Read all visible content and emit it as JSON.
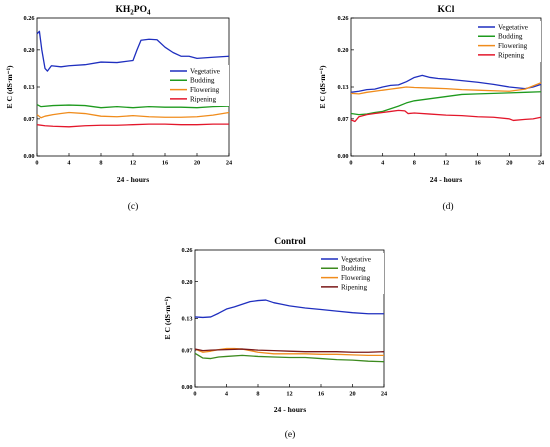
{
  "chart_data": [
    {
      "type": "line",
      "title": "KH2PO4",
      "title_base": "KH",
      "title_sub1": "2",
      "title_mid": "PO",
      "title_sub2": "4",
      "caption": "(c)",
      "xlabel": "24 - hours",
      "ylabel": "E C (dS·m⁻¹)",
      "xlim": [
        0,
        24
      ],
      "ylim": [
        0,
        0.26
      ],
      "xticks": [
        "0",
        "4",
        "8",
        "12",
        "16",
        "20",
        "24"
      ],
      "yticks": [
        "0.00",
        "0.07",
        "0.13",
        "0.20",
        "0.26"
      ],
      "grid": false,
      "legend_position": "right",
      "series": [
        {
          "name": "Vegetative",
          "color": "#1f2fbf",
          "points": [
            [
              0,
              0.23
            ],
            [
              0.3,
              0.235
            ],
            [
              0.6,
              0.2
            ],
            [
              1,
              0.165
            ],
            [
              1.3,
              0.16
            ],
            [
              1.8,
              0.17
            ],
            [
              3,
              0.168
            ],
            [
              4,
              0.17
            ],
            [
              6,
              0.172
            ],
            [
              8,
              0.177
            ],
            [
              10,
              0.176
            ],
            [
              12,
              0.18
            ],
            [
              12.5,
              0.2
            ],
            [
              13,
              0.218
            ],
            [
              14,
              0.22
            ],
            [
              15,
              0.219
            ],
            [
              16,
              0.205
            ],
            [
              17,
              0.195
            ],
            [
              18,
              0.188
            ],
            [
              19,
              0.188
            ],
            [
              20,
              0.184
            ],
            [
              22,
              0.186
            ],
            [
              24,
              0.188
            ]
          ]
        },
        {
          "name": "Budding",
          "color": "#1e9a1e",
          "points": [
            [
              0,
              0.097
            ],
            [
              0.5,
              0.093
            ],
            [
              2,
              0.095
            ],
            [
              4,
              0.096
            ],
            [
              6,
              0.095
            ],
            [
              8,
              0.091
            ],
            [
              10,
              0.093
            ],
            [
              12,
              0.091
            ],
            [
              14,
              0.093
            ],
            [
              16,
              0.092
            ],
            [
              18,
              0.092
            ],
            [
              20,
              0.091
            ],
            [
              22,
              0.093
            ],
            [
              24,
              0.094
            ]
          ]
        },
        {
          "name": "Flowering",
          "color": "#f08c1c",
          "points": [
            [
              0,
              0.078
            ],
            [
              0.5,
              0.072
            ],
            [
              1,
              0.075
            ],
            [
              2,
              0.078
            ],
            [
              3,
              0.08
            ],
            [
              4,
              0.082
            ],
            [
              6,
              0.08
            ],
            [
              8,
              0.075
            ],
            [
              10,
              0.074
            ],
            [
              12,
              0.076
            ],
            [
              14,
              0.074
            ],
            [
              16,
              0.073
            ],
            [
              18,
              0.073
            ],
            [
              20,
              0.074
            ],
            [
              22,
              0.077
            ],
            [
              24,
              0.082
            ]
          ]
        },
        {
          "name": "Ripening",
          "color": "#e3172b",
          "points": [
            [
              0,
              0.059
            ],
            [
              1,
              0.057
            ],
            [
              2,
              0.056
            ],
            [
              4,
              0.055
            ],
            [
              6,
              0.057
            ],
            [
              8,
              0.058
            ],
            [
              10,
              0.058
            ],
            [
              12,
              0.059
            ],
            [
              14,
              0.06
            ],
            [
              16,
              0.06
            ],
            [
              18,
              0.059
            ],
            [
              20,
              0.059
            ],
            [
              22,
              0.06
            ],
            [
              24,
              0.06
            ]
          ]
        }
      ]
    },
    {
      "type": "line",
      "title": "KCl",
      "caption": "(d)",
      "xlabel": "24 - hours",
      "ylabel": "E C (dS·m⁻¹)",
      "xlim": [
        0,
        24
      ],
      "ylim": [
        0,
        0.26
      ],
      "xticks": [
        "0",
        "4",
        "8",
        "12",
        "16",
        "20",
        "24"
      ],
      "yticks": [
        "0.00",
        "0.07",
        "0.13",
        "0.20",
        "0.26"
      ],
      "grid": false,
      "legend_position": "top-right",
      "series": [
        {
          "name": "Vegetative",
          "color": "#1f2fbf",
          "points": [
            [
              0,
              0.12
            ],
            [
              1,
              0.122
            ],
            [
              2,
              0.125
            ],
            [
              3,
              0.126
            ],
            [
              4,
              0.13
            ],
            [
              5,
              0.133
            ],
            [
              6,
              0.134
            ],
            [
              7,
              0.14
            ],
            [
              8,
              0.148
            ],
            [
              9,
              0.152
            ],
            [
              10,
              0.148
            ],
            [
              11,
              0.146
            ],
            [
              12,
              0.145
            ],
            [
              14,
              0.142
            ],
            [
              16,
              0.139
            ],
            [
              18,
              0.135
            ],
            [
              20,
              0.13
            ],
            [
              22,
              0.127
            ],
            [
              23,
              0.13
            ],
            [
              24,
              0.135
            ]
          ]
        },
        {
          "name": "Budding",
          "color": "#1e9a1e",
          "points": [
            [
              0,
              0.08
            ],
            [
              1,
              0.078
            ],
            [
              2,
              0.079
            ],
            [
              3,
              0.082
            ],
            [
              4,
              0.084
            ],
            [
              5,
              0.089
            ],
            [
              6,
              0.094
            ],
            [
              7,
              0.1
            ],
            [
              8,
              0.104
            ],
            [
              10,
              0.108
            ],
            [
              12,
              0.112
            ],
            [
              14,
              0.116
            ],
            [
              16,
              0.117
            ],
            [
              18,
              0.118
            ],
            [
              20,
              0.119
            ],
            [
              22,
              0.12
            ],
            [
              24,
              0.121
            ]
          ]
        },
        {
          "name": "Flowering",
          "color": "#f08c1c",
          "points": [
            [
              0,
              0.118
            ],
            [
              1,
              0.117
            ],
            [
              2,
              0.12
            ],
            [
              4,
              0.124
            ],
            [
              5,
              0.126
            ],
            [
              6,
              0.128
            ],
            [
              7,
              0.13
            ],
            [
              8,
              0.129
            ],
            [
              10,
              0.128
            ],
            [
              12,
              0.127
            ],
            [
              14,
              0.125
            ],
            [
              16,
              0.124
            ],
            [
              18,
              0.123
            ],
            [
              20,
              0.122
            ],
            [
              22,
              0.126
            ],
            [
              24,
              0.138
            ]
          ]
        },
        {
          "name": "Ripening",
          "color": "#e3172b",
          "points": [
            [
              0,
              0.068
            ],
            [
              0.5,
              0.065
            ],
            [
              1,
              0.074
            ],
            [
              2,
              0.078
            ],
            [
              3,
              0.08
            ],
            [
              4,
              0.082
            ],
            [
              5,
              0.084
            ],
            [
              6,
              0.086
            ],
            [
              6.8,
              0.085
            ],
            [
              7.2,
              0.08
            ],
            [
              8,
              0.081
            ],
            [
              10,
              0.079
            ],
            [
              12,
              0.077
            ],
            [
              14,
              0.076
            ],
            [
              16,
              0.074
            ],
            [
              18,
              0.073
            ],
            [
              20,
              0.07
            ],
            [
              20.5,
              0.067
            ],
            [
              22,
              0.069
            ],
            [
              23,
              0.07
            ],
            [
              24,
              0.073
            ]
          ]
        }
      ]
    },
    {
      "type": "line",
      "title": "Control",
      "caption": "(e)",
      "xlabel": "24 - hours",
      "ylabel": "E C (dS·m⁻¹)",
      "xlim": [
        0,
        24
      ],
      "ylim": [
        0,
        0.26
      ],
      "xticks": [
        "0",
        "4",
        "8",
        "12",
        "16",
        "20",
        "24"
      ],
      "yticks": [
        "0.00",
        "0.07",
        "0.13",
        "0.20",
        "0.26"
      ],
      "grid": false,
      "legend_position": "top-right",
      "series": [
        {
          "name": "Vegetative",
          "color": "#1f2fbf",
          "points": [
            [
              0,
              0.133
            ],
            [
              1,
              0.132
            ],
            [
              2,
              0.133
            ],
            [
              3,
              0.14
            ],
            [
              4,
              0.148
            ],
            [
              5,
              0.152
            ],
            [
              6,
              0.157
            ],
            [
              7,
              0.162
            ],
            [
              8,
              0.164
            ],
            [
              9,
              0.165
            ],
            [
              10,
              0.16
            ],
            [
              11,
              0.157
            ],
            [
              12,
              0.154
            ],
            [
              14,
              0.15
            ],
            [
              16,
              0.147
            ],
            [
              18,
              0.144
            ],
            [
              20,
              0.141
            ],
            [
              22,
              0.139
            ],
            [
              24,
              0.139
            ]
          ]
        },
        {
          "name": "Budding",
          "color": "#3c8a1e",
          "points": [
            [
              0,
              0.064
            ],
            [
              1,
              0.055
            ],
            [
              2,
              0.054
            ],
            [
              3,
              0.057
            ],
            [
              4,
              0.058
            ],
            [
              6,
              0.06
            ],
            [
              8,
              0.058
            ],
            [
              10,
              0.057
            ],
            [
              12,
              0.056
            ],
            [
              14,
              0.056
            ],
            [
              16,
              0.054
            ],
            [
              18,
              0.052
            ],
            [
              20,
              0.051
            ],
            [
              22,
              0.049
            ],
            [
              24,
              0.048
            ]
          ]
        },
        {
          "name": "Flowering",
          "color": "#f08c1c",
          "points": [
            [
              0,
              0.072
            ],
            [
              1,
              0.066
            ],
            [
              2,
              0.068
            ],
            [
              3,
              0.071
            ],
            [
              4,
              0.073
            ],
            [
              5,
              0.073
            ],
            [
              6,
              0.072
            ],
            [
              7,
              0.069
            ],
            [
              8,
              0.066
            ],
            [
              10,
              0.063
            ],
            [
              12,
              0.063
            ],
            [
              14,
              0.063
            ],
            [
              16,
              0.062
            ],
            [
              18,
              0.062
            ],
            [
              20,
              0.061
            ],
            [
              22,
              0.06
            ],
            [
              24,
              0.06
            ]
          ]
        },
        {
          "name": "Ripening",
          "color": "#7a1818",
          "points": [
            [
              0,
              0.072
            ],
            [
              1,
              0.069
            ],
            [
              2,
              0.07
            ],
            [
              4,
              0.071
            ],
            [
              6,
              0.072
            ],
            [
              8,
              0.07
            ],
            [
              10,
              0.069
            ],
            [
              12,
              0.068
            ],
            [
              14,
              0.067
            ],
            [
              16,
              0.067
            ],
            [
              18,
              0.067
            ],
            [
              20,
              0.066
            ],
            [
              22,
              0.066
            ],
            [
              24,
              0.067
            ]
          ]
        }
      ]
    }
  ]
}
